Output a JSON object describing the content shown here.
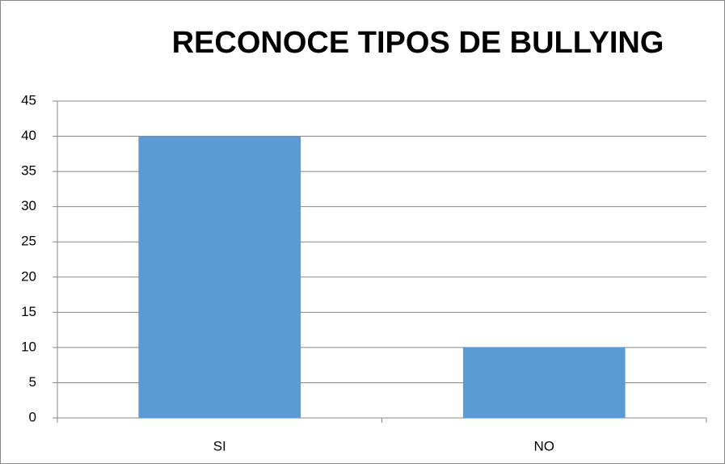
{
  "chart_data": {
    "type": "bar",
    "title": "RECONOCE TIPOS DE BULLYING",
    "categories": [
      "SI",
      "NO"
    ],
    "values": [
      40,
      10
    ],
    "color": "#5b9bd5",
    "ylim": [
      0,
      45
    ],
    "yticks": [
      0,
      5,
      10,
      15,
      20,
      25,
      30,
      35,
      40,
      45
    ],
    "grid": true
  }
}
